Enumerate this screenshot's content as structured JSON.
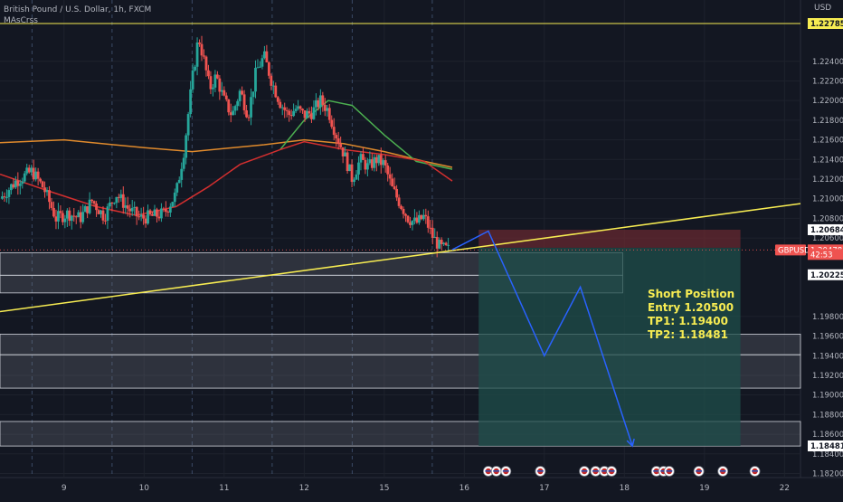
{
  "header": {
    "symbol_title": "British Pound / U.S. Dollar, 1h, FXCM",
    "indicator": "MAsCrss"
  },
  "price_axis": {
    "currency": "USD",
    "tick_labels": [
      "1.22400",
      "1.22200",
      "1.22000",
      "1.21800",
      "1.21600",
      "1.21400",
      "1.21200",
      "1.21000",
      "1.20800",
      "1.20600",
      "1.19800",
      "1.19600",
      "1.19400",
      "1.19200",
      "1.19000",
      "1.18800",
      "1.18600",
      "1.18400",
      "1.18200"
    ],
    "highlighted_labels": [
      {
        "text": "1.22785",
        "value": 1.22785,
        "kind": "yellow"
      },
      {
        "text": "1.20684",
        "value": 1.20684,
        "kind": "white"
      },
      {
        "text": "GBPUSD",
        "value": 1.20478,
        "kind": "symbol"
      },
      {
        "text": "1.20478",
        "value": 1.20478,
        "kind": "price"
      },
      {
        "text": "42:53",
        "value": 1.20432,
        "kind": "countdown"
      },
      {
        "text": "1.20225",
        "value": 1.20225,
        "kind": "white"
      },
      {
        "text": "1.18481",
        "value": 1.18481,
        "kind": "white"
      }
    ]
  },
  "time_axis": {
    "tick_labels": [
      "9",
      "10",
      "11",
      "12",
      "15",
      "16",
      "17",
      "18",
      "19",
      "22"
    ]
  },
  "annotation": {
    "line1": "Short Position",
    "line2": "Entry 1.20500",
    "line3": "TP1: 1.19400",
    "line4": "TP2: 1.18481"
  },
  "colors": {
    "background": "#131722",
    "up_candle": "#26a69a",
    "down_candle": "#ef5350",
    "trendline": "#f7ec52",
    "ma_fast": "#d32f2f",
    "ma_mid": "#4caf50",
    "ma_slow": "#e08a2c",
    "projection": "#2962ff",
    "stop_zone": "#6b2a30",
    "target_zone": "#1f4f4b",
    "text_annotation": "#f7ec52"
  },
  "chart_data": {
    "type": "candlestick",
    "title": "British Pound / U.S. Dollar, 1h, FXCM",
    "xlabel": "",
    "ylabel": "USD",
    "ylim": [
      1.181,
      1.2285
    ],
    "xlim": [
      8.2,
      22.2
    ],
    "x_unit": "day",
    "x_ticks": [
      {
        "label": "9",
        "x": 9
      },
      {
        "label": "10",
        "x": 10
      },
      {
        "label": "11",
        "x": 11
      },
      {
        "label": "12",
        "x": 12
      },
      {
        "label": "15",
        "x": 13
      },
      {
        "label": "16",
        "x": 14
      },
      {
        "label": "17",
        "x": 15
      },
      {
        "label": "18",
        "x": 16
      },
      {
        "label": "19",
        "x": 17
      },
      {
        "label": "22",
        "x": 18
      }
    ],
    "y_ticks": [
      1.224,
      1.222,
      1.22,
      1.218,
      1.216,
      1.214,
      1.212,
      1.21,
      1.208,
      1.206,
      1.198,
      1.196,
      1.194,
      1.192,
      1.19,
      1.188,
      1.186,
      1.184,
      1.182
    ],
    "price_path": [
      [
        8.2,
        1.21
      ],
      [
        8.4,
        1.2118
      ],
      [
        8.6,
        1.2128
      ],
      [
        8.75,
        1.211
      ],
      [
        8.9,
        1.208
      ],
      [
        9.05,
        1.2085
      ],
      [
        9.2,
        1.208
      ],
      [
        9.35,
        1.2098
      ],
      [
        9.5,
        1.2082
      ],
      [
        9.65,
        1.2105
      ],
      [
        9.8,
        1.209
      ],
      [
        9.95,
        1.208
      ],
      [
        10.1,
        1.2082
      ],
      [
        10.25,
        1.2085
      ],
      [
        10.4,
        1.2105
      ],
      [
        10.5,
        1.215
      ],
      [
        10.6,
        1.222
      ],
      [
        10.68,
        1.2265
      ],
      [
        10.75,
        1.224
      ],
      [
        10.82,
        1.2212
      ],
      [
        10.9,
        1.2225
      ],
      [
        11.0,
        1.22
      ],
      [
        11.1,
        1.2185
      ],
      [
        11.2,
        1.221
      ],
      [
        11.3,
        1.2185
      ],
      [
        11.4,
        1.223
      ],
      [
        11.5,
        1.2245
      ],
      [
        11.6,
        1.2218
      ],
      [
        11.7,
        1.2198
      ],
      [
        11.8,
        1.2185
      ],
      [
        11.9,
        1.2192
      ],
      [
        12.0,
        1.2185
      ],
      [
        12.1,
        1.2188
      ],
      [
        12.2,
        1.22
      ],
      [
        12.3,
        1.219
      ],
      [
        12.4,
        1.2165
      ],
      [
        12.5,
        1.2145
      ],
      [
        12.6,
        1.212
      ],
      [
        12.7,
        1.214
      ],
      [
        12.8,
        1.2132
      ],
      [
        12.9,
        1.214
      ],
      [
        13.0,
        1.2135
      ],
      [
        13.1,
        1.211
      ],
      [
        13.2,
        1.2095
      ],
      [
        13.3,
        1.208
      ],
      [
        13.4,
        1.2075
      ],
      [
        13.5,
        1.2082
      ],
      [
        13.6,
        1.2062
      ],
      [
        13.7,
        1.205
      ],
      [
        13.8,
        1.2048
      ]
    ],
    "series": [
      {
        "name": "",
        "type": "ma",
        "color": "#e08a2c",
        "points": [
          [
            8.2,
            1.2157
          ],
          [
            9.0,
            1.216
          ],
          [
            10.0,
            1.2152
          ],
          [
            10.6,
            1.2148
          ],
          [
            11.5,
            1.2155
          ],
          [
            12.0,
            1.216
          ],
          [
            12.5,
            1.2156
          ],
          [
            13.0,
            1.2148
          ],
          [
            13.5,
            1.2138
          ],
          [
            13.85,
            1.2132
          ]
        ]
      },
      {
        "name": "",
        "type": "ma",
        "color": "#4caf50",
        "points": [
          [
            11.7,
            1.215
          ],
          [
            12.0,
            1.218
          ],
          [
            12.3,
            1.22
          ],
          [
            12.6,
            1.2195
          ],
          [
            13.0,
            1.2165
          ],
          [
            13.4,
            1.2138
          ],
          [
            13.85,
            1.213
          ]
        ]
      },
      {
        "name": "",
        "type": "ma",
        "color": "#d32f2f",
        "points": [
          [
            8.2,
            1.2125
          ],
          [
            8.8,
            1.2108
          ],
          [
            9.4,
            1.2092
          ],
          [
            9.9,
            1.2083
          ],
          [
            10.4,
            1.2092
          ],
          [
            10.8,
            1.2112
          ],
          [
            11.2,
            1.2135
          ],
          [
            11.7,
            1.215
          ],
          [
            12.0,
            1.2158
          ],
          [
            12.5,
            1.215
          ],
          [
            13.0,
            1.2145
          ],
          [
            13.5,
            1.2138
          ],
          [
            13.85,
            1.2118
          ]
        ]
      }
    ],
    "horizontal_lines": [
      {
        "value": 1.22785,
        "label": "1.22785"
      }
    ],
    "trendline": [
      [
        8.2,
        1.1985
      ],
      [
        18.2,
        1.2095
      ]
    ],
    "zones": [
      {
        "y1": 1.2022,
        "y2": 1.2045,
        "x1": 8.2,
        "x2": 15.98
      },
      {
        "y1": 1.2004,
        "y2": 1.2022,
        "x1": 8.2,
        "x2": 15.98
      },
      {
        "y1": 1.1941,
        "y2": 1.1962,
        "x1": 8.2,
        "x2": 18.2
      },
      {
        "y1": 1.1907,
        "y2": 1.1941,
        "x1": 8.2,
        "x2": 18.2
      },
      {
        "y1": 1.1848,
        "y2": 1.1873,
        "x1": 8.2,
        "x2": 18.2
      }
    ],
    "position": {
      "entry": 1.205,
      "stop": 1.20684,
      "tp1": 1.194,
      "tp2": 1.18481,
      "x_start": 14.18,
      "x_end": 17.45
    },
    "projection_path": [
      [
        13.85,
        1.2048
      ],
      [
        14.3,
        1.2067
      ],
      [
        15.0,
        1.194
      ],
      [
        15.45,
        1.201
      ],
      [
        16.1,
        1.1848
      ]
    ],
    "event_markers_x": [
      14.3,
      14.4,
      14.52,
      14.95,
      15.5,
      15.64,
      15.75,
      15.84,
      16.4,
      16.49,
      16.56,
      16.93,
      17.23,
      17.63
    ]
  }
}
